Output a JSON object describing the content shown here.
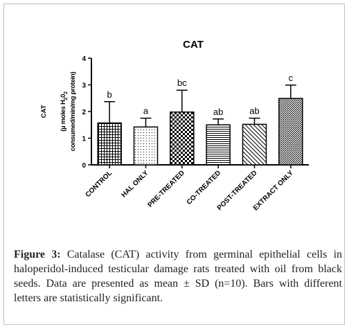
{
  "chart_data": {
    "type": "bar",
    "title": "CAT",
    "ylabel_line1_pre": "(µ moles H",
    "ylabel_line1_sub": "2",
    "ylabel_line1_mid": "0",
    "ylabel_line1_sub2": "2",
    "ylabel_line2": "consumed/min/mg protein)",
    "ylabel_prefix": "CAT",
    "ylim": [
      0,
      4
    ],
    "yticks": [
      0,
      1,
      2,
      3,
      4
    ],
    "categories": [
      "CONTROL",
      "HAL ONLY",
      "PRE-TREATED",
      "CO-TREATED",
      "POST-TREATED",
      "EXTRACT ONLY"
    ],
    "values": [
      1.57,
      1.42,
      1.98,
      1.5,
      1.52,
      2.49
    ],
    "errors": [
      0.8,
      0.33,
      0.82,
      0.22,
      0.23,
      0.5
    ],
    "significance_letters": [
      "b",
      "a",
      "bc",
      "ab",
      "ab",
      "c"
    ],
    "patterns": [
      "grid",
      "dots",
      "checker",
      "hlines",
      "diag-back",
      "diag-fine"
    ]
  },
  "caption": {
    "label": "Figure 3:",
    "text": " Catalase (CAT) activity from germinal epithelial cells in haloperidol-induced testicular damage rats treated with oil from black seeds. Data are presented as mean ± SD (n=10). Bars with different letters are statistically significant."
  }
}
